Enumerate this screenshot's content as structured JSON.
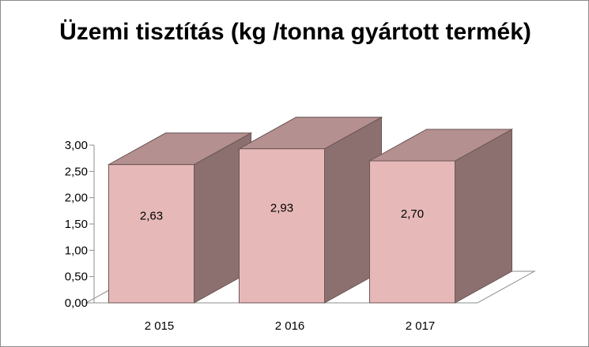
{
  "chart_data": {
    "type": "bar",
    "title": "Üzemi tisztítás (kg /tonna gyártott termék)",
    "categories": [
      "2 015",
      "2 016",
      "2 017"
    ],
    "values": [
      2.63,
      2.93,
      2.7
    ],
    "value_labels": [
      "2,63",
      "2,93",
      "2,70"
    ],
    "ylim": [
      0,
      3
    ],
    "yticks": [
      0,
      0.5,
      1,
      1.5,
      2,
      2.5,
      3
    ],
    "ytick_labels": [
      "0,00",
      "0,50",
      "1,00",
      "1,50",
      "2,00",
      "2,50",
      "3,00"
    ],
    "xlabel": "",
    "ylabel": "",
    "grid": false,
    "legend": "none",
    "style": "3d-column"
  },
  "colors": {
    "bar_front": "#e6b9b8",
    "bar_side": "#8c7070",
    "bar_top": "#b49090",
    "bar_stroke": "#6e5555",
    "floor": "#ffffff",
    "axis": "#8c8c8c"
  }
}
